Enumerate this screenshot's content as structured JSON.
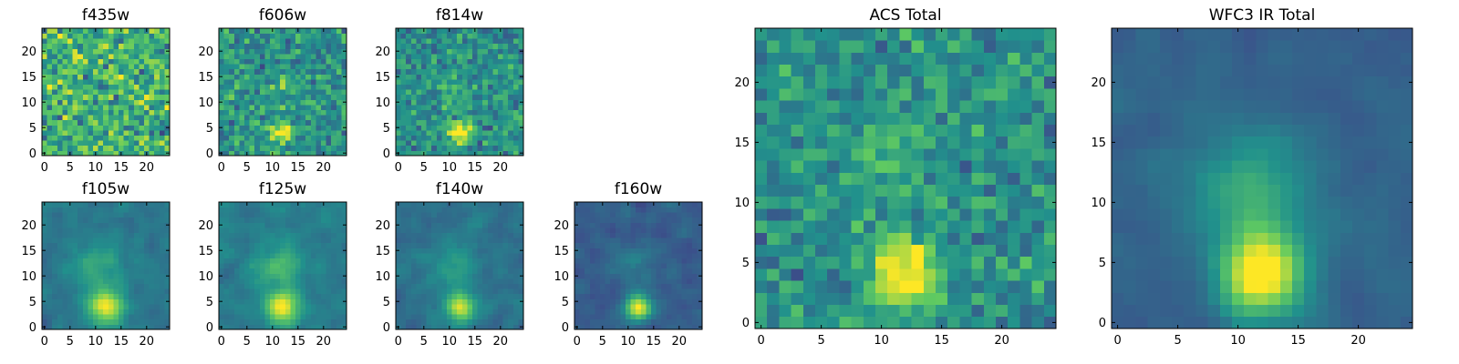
{
  "figure": {
    "background": "#ffffff",
    "colormap": "viridis",
    "colormap_stops": [
      "#440154",
      "#3b528b",
      "#21918c",
      "#5ec962",
      "#fde725"
    ]
  },
  "chart_data": [
    {
      "type": "heatmap",
      "title": "f435w",
      "grid_size": [
        25,
        25
      ],
      "x_ticks": [
        0,
        5,
        10,
        15,
        20
      ],
      "y_ticks": [
        0,
        5,
        10,
        15,
        20
      ],
      "xlim": [
        -0.5,
        24.5
      ],
      "ylim": [
        -0.5,
        24.5
      ],
      "noise_level": 0.26,
      "noise_mean": 0.64,
      "smoothing": 0,
      "sources": [
        {
          "x": 12,
          "y": 4,
          "amplitude": 0.05,
          "sigma": 2.5
        }
      ],
      "seed": 11,
      "grid": false
    },
    {
      "type": "heatmap",
      "title": "f606w",
      "grid_size": [
        25,
        25
      ],
      "x_ticks": [
        0,
        5,
        10,
        15,
        20
      ],
      "y_ticks": [
        0,
        5,
        10,
        15,
        20
      ],
      "xlim": [
        -0.5,
        24.5
      ],
      "ylim": [
        -0.5,
        24.5
      ],
      "noise_level": 0.2,
      "noise_mean": 0.52,
      "smoothing": 0,
      "sources": [
        {
          "x": 12,
          "y": 4,
          "amplitude": 0.55,
          "sigma": 1.4
        },
        {
          "x": 12,
          "y": 13,
          "amplitude": 0.12,
          "sigma": 1.5
        }
      ],
      "seed": 23,
      "grid": false
    },
    {
      "type": "heatmap",
      "title": "f814w",
      "grid_size": [
        25,
        25
      ],
      "x_ticks": [
        0,
        5,
        10,
        15,
        20
      ],
      "y_ticks": [
        0,
        5,
        10,
        15,
        20
      ],
      "xlim": [
        -0.5,
        24.5
      ],
      "ylim": [
        -0.5,
        24.5
      ],
      "noise_level": 0.18,
      "noise_mean": 0.5,
      "smoothing": 0,
      "sources": [
        {
          "x": 12,
          "y": 4,
          "amplitude": 0.55,
          "sigma": 1.6
        },
        {
          "x": 11,
          "y": 12,
          "amplitude": 0.15,
          "sigma": 2.0
        }
      ],
      "seed": 37,
      "grid": false
    },
    {
      "type": "heatmap",
      "title": "f105w",
      "grid_size": [
        25,
        25
      ],
      "x_ticks": [
        0,
        5,
        10,
        15,
        20
      ],
      "y_ticks": [
        0,
        5,
        10,
        15,
        20
      ],
      "xlim": [
        -0.5,
        24.5
      ],
      "ylim": [
        -0.5,
        24.5
      ],
      "noise_level": 0.13,
      "noise_mean": 0.4,
      "smoothing": 1,
      "sources": [
        {
          "x": 12,
          "y": 4,
          "amplitude": 0.6,
          "sigma": 2.4
        },
        {
          "x": 10,
          "y": 12,
          "amplitude": 0.22,
          "sigma": 3.0
        }
      ],
      "seed": 51,
      "grid": false
    },
    {
      "type": "heatmap",
      "title": "f125w",
      "grid_size": [
        25,
        25
      ],
      "x_ticks": [
        0,
        5,
        10,
        15,
        20
      ],
      "y_ticks": [
        0,
        5,
        10,
        15,
        20
      ],
      "xlim": [
        -0.5,
        24.5
      ],
      "ylim": [
        -0.5,
        24.5
      ],
      "noise_level": 0.14,
      "noise_mean": 0.42,
      "smoothing": 1,
      "sources": [
        {
          "x": 12,
          "y": 4,
          "amplitude": 0.55,
          "sigma": 2.3
        },
        {
          "x": 11,
          "y": 12,
          "amplitude": 0.25,
          "sigma": 3.0
        }
      ],
      "seed": 67,
      "grid": false
    },
    {
      "type": "heatmap",
      "title": "f140w",
      "grid_size": [
        25,
        25
      ],
      "x_ticks": [
        0,
        5,
        10,
        15,
        20
      ],
      "y_ticks": [
        0,
        5,
        10,
        15,
        20
      ],
      "xlim": [
        -0.5,
        24.5
      ],
      "ylim": [
        -0.5,
        24.5
      ],
      "noise_level": 0.14,
      "noise_mean": 0.38,
      "smoothing": 1,
      "sources": [
        {
          "x": 12,
          "y": 4,
          "amplitude": 0.55,
          "sigma": 2.0
        },
        {
          "x": 11,
          "y": 12,
          "amplitude": 0.18,
          "sigma": 3.0
        }
      ],
      "seed": 79,
      "grid": false
    },
    {
      "type": "heatmap",
      "title": "f160w",
      "grid_size": [
        25,
        25
      ],
      "x_ticks": [
        0,
        5,
        10,
        15,
        20
      ],
      "y_ticks": [
        0,
        5,
        10,
        15,
        20
      ],
      "xlim": [
        -0.5,
        24.5
      ],
      "ylim": [
        -0.5,
        24.5
      ],
      "noise_level": 0.14,
      "noise_mean": 0.3,
      "smoothing": 1,
      "sources": [
        {
          "x": 12,
          "y": 4,
          "amplitude": 0.65,
          "sigma": 1.8
        },
        {
          "x": 11,
          "y": 12,
          "amplitude": 0.12,
          "sigma": 3.0
        }
      ],
      "seed": 97,
      "grid": false
    },
    {
      "type": "heatmap",
      "title": "ACS Total",
      "grid_size": [
        25,
        25
      ],
      "x_ticks": [
        0,
        5,
        10,
        15,
        20
      ],
      "y_ticks": [
        0,
        5,
        10,
        15,
        20
      ],
      "xlim": [
        -0.5,
        24.5
      ],
      "ylim": [
        -0.5,
        24.5
      ],
      "noise_level": 0.17,
      "noise_mean": 0.5,
      "smoothing": 0,
      "sources": [
        {
          "x": 12,
          "y": 4,
          "amplitude": 0.55,
          "sigma": 2.0
        },
        {
          "x": 11,
          "y": 13,
          "amplitude": 0.12,
          "sigma": 2.5
        }
      ],
      "seed": 113,
      "grid": false
    },
    {
      "type": "heatmap",
      "title": "WFC3 IR Total",
      "grid_size": [
        25,
        25
      ],
      "x_ticks": [
        0,
        5,
        10,
        15,
        20
      ],
      "y_ticks": [
        0,
        5,
        10,
        15,
        20
      ],
      "xlim": [
        -0.5,
        24.5
      ],
      "ylim": [
        -0.5,
        24.5
      ],
      "noise_level": 0.09,
      "noise_mean": 0.32,
      "smoothing": 1,
      "sources": [
        {
          "x": 12,
          "y": 4,
          "amplitude": 0.75,
          "sigma": 2.4
        },
        {
          "x": 11,
          "y": 11,
          "amplitude": 0.3,
          "sigma": 3.5
        }
      ],
      "seed": 131,
      "grid": false
    }
  ]
}
